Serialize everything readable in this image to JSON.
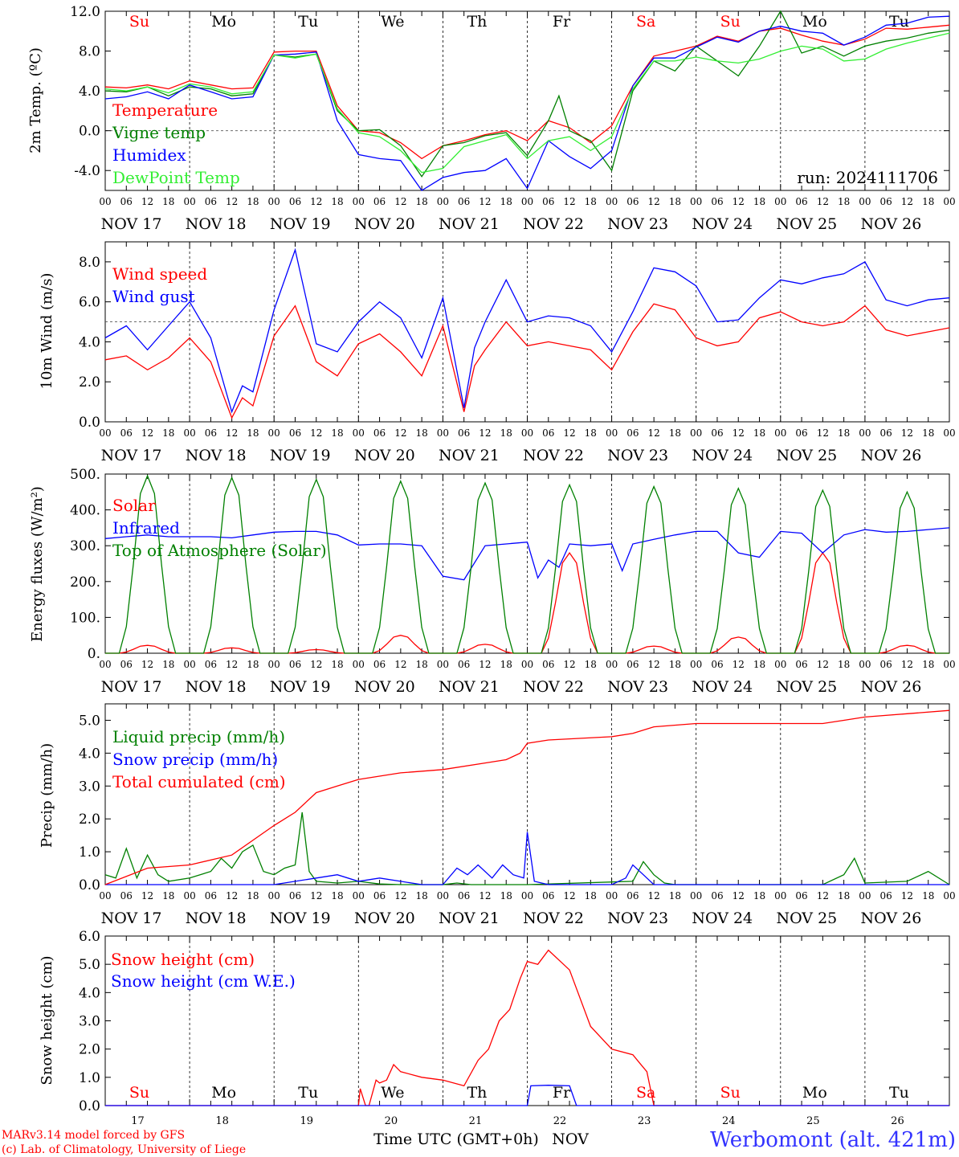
{
  "colors": {
    "red": "#ff0000",
    "green": "#008000",
    "blue": "#0000ff",
    "lightgreen": "#33ee33",
    "weekend": "#ff0000"
  },
  "days": [
    "Su",
    "Mo",
    "Tu",
    "We",
    "Th",
    "Fr",
    "Sa",
    "Su",
    "Mo",
    "Tu"
  ],
  "date_labels": [
    "NOV 17",
    "NOV 18",
    "NOV 19",
    "NOV 20",
    "NOV 21",
    "NOV 22",
    "NOV 23",
    "NOV 24",
    "NOV 25",
    "NOV 26"
  ],
  "hour_labels": [
    "00",
    "06",
    "12",
    "18"
  ],
  "bottom_day_numbers": [
    "17",
    "18",
    "19",
    "20",
    "21",
    "22",
    "23",
    "24",
    "25",
    "26"
  ],
  "footer": {
    "model": "MARv3.14 model forced by GFS",
    "credit": "(c) Lab. of Climatology, University of Liege",
    "xlabel": "Time UTC (GMT+0h)",
    "month": "NOV",
    "station": "Werbomont (alt. 421m)"
  },
  "chart_data": [
    {
      "type": "line",
      "ylabel": "2m Temp. (ºC)",
      "ylim": [
        -6,
        12
      ],
      "yticks": [
        -4,
        0,
        4,
        8,
        12
      ],
      "ytick_labels": [
        "-4.0",
        "0.0",
        "4.0",
        "8.0",
        "12.0"
      ],
      "ref_line": 0,
      "annotation": "run: 2024111706",
      "x_unit": "hours since NOV 17 00 UTC",
      "series": [
        {
          "name": "Temperature",
          "color": "red",
          "x": [
            0,
            6,
            12,
            18,
            24,
            30,
            36,
            42,
            48,
            54,
            60,
            66,
            72,
            78,
            84,
            90,
            96,
            102,
            108,
            114,
            120,
            126,
            132,
            138,
            144,
            150,
            156,
            162,
            168,
            174,
            180,
            186,
            192,
            198,
            204,
            210,
            216,
            222,
            228,
            234,
            240
          ],
          "y": [
            4.4,
            4.3,
            4.6,
            4.2,
            5.0,
            4.6,
            4.2,
            4.3,
            7.9,
            8.0,
            8.0,
            2.5,
            0.0,
            -0.2,
            -1.2,
            -2.8,
            -1.5,
            -1.0,
            -0.4,
            0.0,
            -1.0,
            1.0,
            0.3,
            -1.2,
            0.5,
            4.5,
            7.5,
            8.0,
            8.5,
            9.5,
            9.0,
            10.0,
            10.3,
            9.6,
            9.0,
            8.6,
            9.2,
            10.3,
            10.2,
            10.4,
            10.6
          ]
        },
        {
          "name": "Vigne temp",
          "color": "green",
          "x": [
            0,
            6,
            12,
            18,
            24,
            30,
            36,
            42,
            48,
            54,
            60,
            66,
            72,
            78,
            84,
            90,
            96,
            102,
            108,
            114,
            120,
            126,
            129,
            132,
            138,
            144,
            150,
            156,
            162,
            168,
            174,
            180,
            186,
            192,
            198,
            204,
            210,
            216,
            222,
            228,
            234,
            240
          ],
          "y": [
            4.0,
            3.9,
            4.4,
            3.5,
            4.4,
            4.2,
            3.5,
            3.7,
            7.6,
            7.4,
            7.7,
            2.0,
            0.0,
            0.1,
            -1.5,
            -4.6,
            -1.5,
            -1.2,
            -0.5,
            -0.2,
            -2.5,
            1.0,
            3.5,
            0.0,
            -1.0,
            -4.0,
            4.0,
            7.0,
            6.0,
            8.5,
            7.0,
            5.5,
            8.5,
            12.0,
            7.8,
            8.5,
            7.5,
            8.5,
            9.0,
            9.3,
            9.8,
            10.1
          ]
        },
        {
          "name": "Humidex",
          "color": "blue",
          "x": [
            0,
            6,
            12,
            18,
            24,
            30,
            36,
            42,
            48,
            54,
            60,
            66,
            72,
            78,
            84,
            90,
            96,
            102,
            108,
            114,
            120,
            126,
            132,
            138,
            144,
            150,
            156,
            162,
            168,
            174,
            180,
            186,
            192,
            198,
            204,
            210,
            216,
            222,
            228,
            234,
            240
          ],
          "y": [
            3.2,
            3.4,
            3.9,
            3.2,
            4.6,
            3.9,
            3.2,
            3.4,
            7.6,
            7.7,
            7.9,
            1.0,
            -2.4,
            -2.8,
            -3.0,
            -6.0,
            -4.7,
            -4.2,
            -4.0,
            -2.8,
            -5.8,
            -1.0,
            -2.6,
            -3.8,
            -2.0,
            4.5,
            7.3,
            7.3,
            8.4,
            9.4,
            8.9,
            10.0,
            10.5,
            10.0,
            9.8,
            8.6,
            9.4,
            10.6,
            10.8,
            11.4,
            11.5
          ]
        },
        {
          "name": "DewPoint Temp",
          "color": "lightgreen",
          "x": [
            0,
            6,
            12,
            18,
            24,
            30,
            36,
            42,
            48,
            54,
            60,
            66,
            72,
            78,
            84,
            90,
            96,
            102,
            108,
            114,
            120,
            126,
            132,
            138,
            144,
            150,
            156,
            162,
            168,
            174,
            180,
            186,
            192,
            198,
            204,
            210,
            216,
            222,
            228,
            234,
            240
          ],
          "y": [
            4.2,
            4.0,
            4.4,
            3.8,
            4.7,
            4.4,
            3.7,
            3.9,
            7.6,
            7.3,
            7.7,
            2.2,
            -0.2,
            -0.6,
            -2.0,
            -4.2,
            -3.8,
            -1.6,
            -1.0,
            -0.4,
            -2.8,
            -1.0,
            -0.6,
            -2.0,
            -0.6,
            4.2,
            7.0,
            7.0,
            7.4,
            7.0,
            6.8,
            7.2,
            8.0,
            8.5,
            8.2,
            7.0,
            7.2,
            8.2,
            8.8,
            9.3,
            9.8
          ]
        }
      ]
    },
    {
      "type": "line",
      "ylabel": "10m Wind (m/s)",
      "ylim": [
        0,
        9
      ],
      "yticks": [
        0,
        2,
        4,
        6,
        8
      ],
      "ytick_labels": [
        "0.0",
        "2.0",
        "4.0",
        "6.0",
        "8.0"
      ],
      "ref_line": 5,
      "series": [
        {
          "name": "Wind speed",
          "color": "red",
          "x": [
            0,
            6,
            12,
            18,
            24,
            30,
            36,
            39,
            42,
            48,
            54,
            60,
            66,
            72,
            78,
            84,
            90,
            96,
            102,
            105,
            108,
            114,
            120,
            126,
            132,
            138,
            144,
            150,
            156,
            162,
            168,
            174,
            180,
            186,
            192,
            198,
            204,
            210,
            216,
            222,
            228,
            234,
            240
          ],
          "y": [
            3.1,
            3.3,
            2.6,
            3.2,
            4.2,
            3.0,
            0.2,
            1.2,
            0.8,
            4.3,
            5.8,
            3.0,
            2.3,
            3.9,
            4.4,
            3.5,
            2.3,
            4.8,
            0.5,
            2.8,
            3.6,
            5.0,
            3.8,
            4.0,
            3.8,
            3.6,
            2.6,
            4.5,
            5.9,
            5.6,
            4.2,
            3.8,
            4.0,
            5.2,
            5.5,
            5.0,
            4.8,
            5.0,
            5.8,
            4.6,
            4.3,
            4.5,
            4.7
          ]
        },
        {
          "name": "Wind gust",
          "color": "blue",
          "x": [
            0,
            6,
            12,
            18,
            24,
            30,
            36,
            39,
            42,
            48,
            54,
            60,
            66,
            72,
            78,
            84,
            90,
            96,
            102,
            105,
            108,
            114,
            120,
            126,
            132,
            138,
            144,
            150,
            156,
            162,
            168,
            174,
            180,
            186,
            192,
            198,
            204,
            210,
            216,
            222,
            228,
            234,
            240
          ],
          "y": [
            4.2,
            4.8,
            3.6,
            4.8,
            6.0,
            4.2,
            0.5,
            1.8,
            1.5,
            5.6,
            8.6,
            3.9,
            3.5,
            5.0,
            6.0,
            5.2,
            3.2,
            6.2,
            0.7,
            3.7,
            5.0,
            7.1,
            5.0,
            5.3,
            5.2,
            4.8,
            3.5,
            5.5,
            7.7,
            7.5,
            6.8,
            5.0,
            5.1,
            6.2,
            7.1,
            6.9,
            7.2,
            7.4,
            8.0,
            6.1,
            5.8,
            6.1,
            6.2
          ]
        }
      ]
    },
    {
      "type": "line",
      "ylabel": "Energy fluxes (W/m²)",
      "ylim": [
        0,
        500
      ],
      "yticks": [
        0,
        100,
        200,
        300,
        400,
        500
      ],
      "ytick_labels": [
        "0.",
        "100.",
        "200.",
        "300.",
        "400.",
        "500."
      ],
      "series": [
        {
          "name": "Solar",
          "color": "red",
          "peaks": [
            22,
            15,
            10,
            50,
            25,
            280,
            20,
            45,
            280,
            22
          ]
        },
        {
          "name": "Infrared",
          "color": "blue",
          "x": [
            0,
            6,
            12,
            18,
            24,
            30,
            36,
            42,
            48,
            54,
            60,
            66,
            72,
            78,
            84,
            90,
            96,
            102,
            108,
            114,
            120,
            123,
            126,
            129,
            132,
            138,
            144,
            147,
            150,
            156,
            162,
            168,
            174,
            180,
            186,
            192,
            198,
            204,
            210,
            216,
            222,
            228,
            234,
            240
          ],
          "y": [
            320,
            325,
            330,
            325,
            325,
            325,
            322,
            330,
            338,
            340,
            340,
            330,
            302,
            305,
            305,
            300,
            215,
            205,
            300,
            305,
            310,
            210,
            260,
            240,
            305,
            300,
            305,
            230,
            305,
            318,
            330,
            340,
            340,
            280,
            268,
            340,
            335,
            280,
            330,
            345,
            338,
            340,
            345,
            350
          ]
        },
        {
          "name": "Top of Atmosphere (Solar)",
          "color": "green",
          "peaks": [
            495,
            490,
            485,
            480,
            475,
            470,
            465,
            460,
            455,
            450
          ]
        }
      ]
    },
    {
      "type": "line",
      "ylabel": "Precip (mm/h)",
      "ylim": [
        0,
        5.5
      ],
      "yticks": [
        0,
        1,
        2,
        3,
        4,
        5
      ],
      "ytick_labels": [
        "0.0",
        "1.0",
        "2.0",
        "3.0",
        "4.0",
        "5.0"
      ],
      "series": [
        {
          "name": "Liquid precip (mm/h)",
          "color": "green",
          "x": [
            0,
            3,
            6,
            9,
            12,
            15,
            18,
            24,
            30,
            33,
            36,
            39,
            42,
            45,
            48,
            51,
            54,
            56,
            58,
            60,
            66,
            72,
            78,
            84,
            90,
            96,
            100,
            104,
            108,
            114,
            120,
            150,
            153,
            156,
            159,
            162,
            180,
            204,
            210,
            213,
            216,
            228,
            234,
            240
          ],
          "y": [
            0.3,
            0.2,
            1.1,
            0.2,
            0.9,
            0.3,
            0.1,
            0.2,
            0.4,
            0.8,
            0.5,
            1.0,
            1.2,
            0.4,
            0.3,
            0.5,
            0.6,
            2.2,
            0.4,
            0.1,
            0.05,
            0.1,
            0.02,
            0.0,
            0.0,
            0.0,
            0.05,
            0.0,
            0.0,
            0.0,
            0.0,
            0.1,
            0.7,
            0.3,
            0.05,
            0.0,
            0.0,
            0.0,
            0.3,
            0.8,
            0.05,
            0.1,
            0.4,
            0.0
          ]
        },
        {
          "name": "Snow precip (mm/h)",
          "color": "blue",
          "x": [
            0,
            48,
            54,
            60,
            66,
            72,
            78,
            84,
            90,
            96,
            100,
            103,
            106,
            110,
            113,
            116,
            119,
            120,
            122,
            126,
            144,
            148,
            150,
            153,
            156,
            240
          ],
          "y": [
            0.0,
            0.0,
            0.1,
            0.2,
            0.3,
            0.1,
            0.2,
            0.1,
            0.0,
            0.0,
            0.5,
            0.3,
            0.6,
            0.2,
            0.6,
            0.3,
            0.2,
            1.6,
            0.1,
            0.0,
            0.0,
            0.2,
            0.6,
            0.3,
            0.0,
            0.0
          ]
        },
        {
          "name": "Total cumulated (cm)",
          "color": "red",
          "x": [
            0,
            12,
            24,
            36,
            48,
            54,
            60,
            66,
            72,
            84,
            96,
            108,
            114,
            118,
            120,
            126,
            144,
            150,
            156,
            168,
            192,
            204,
            210,
            216,
            228,
            240
          ],
          "y": [
            0.0,
            0.5,
            0.6,
            0.9,
            1.8,
            2.2,
            2.8,
            3.0,
            3.2,
            3.4,
            3.5,
            3.7,
            3.8,
            4.0,
            4.3,
            4.4,
            4.5,
            4.6,
            4.8,
            4.9,
            4.9,
            4.9,
            5.0,
            5.1,
            5.2,
            5.3
          ]
        }
      ]
    },
    {
      "type": "line",
      "ylabel": "Snow height (cm)",
      "ylim": [
        0,
        6
      ],
      "yticks": [
        0,
        1,
        2,
        3,
        4,
        5,
        6
      ],
      "ytick_labels": [
        "0.0",
        "1.0",
        "2.0",
        "3.0",
        "4.0",
        "5.0",
        "6.0"
      ],
      "series": [
        {
          "name": "Snow height (cm)",
          "color": "red",
          "x": [
            0,
            72,
            72.5,
            74,
            75,
            77,
            78,
            80,
            82,
            84,
            90,
            96,
            102,
            106,
            109,
            112,
            115,
            118,
            120,
            123,
            126,
            132,
            138,
            144,
            150,
            152,
            154,
            156,
            240
          ],
          "y": [
            0.0,
            0.0,
            0.6,
            0.0,
            0.0,
            0.9,
            0.8,
            0.9,
            1.45,
            1.2,
            1.0,
            0.9,
            0.7,
            1.6,
            2.0,
            3.0,
            3.4,
            4.5,
            5.1,
            5.0,
            5.5,
            4.8,
            2.8,
            2.0,
            1.8,
            1.5,
            1.2,
            0.0,
            0.0
          ]
        },
        {
          "name": "Snow height (cm W.E.)",
          "color": "blue",
          "x": [
            0,
            120,
            121,
            126,
            132,
            134,
            240
          ],
          "y": [
            0.0,
            0.0,
            0.7,
            0.72,
            0.7,
            0.0,
            0.0
          ]
        }
      ]
    }
  ],
  "legends": {
    "temp": [
      "Temperature",
      "Vigne temp",
      "Humidex",
      "DewPoint Temp"
    ],
    "wind": [
      "Wind speed",
      "Wind gust"
    ],
    "energy": [
      "Solar",
      "Infrared",
      "Top of Atmosphere (Solar)"
    ],
    "precip": [
      "Liquid precip (mm/h)",
      "Snow precip (mm/h)",
      "Total cumulated (cm)"
    ],
    "snow": [
      "Snow height (cm)",
      "Snow height (cm W.E.)"
    ]
  }
}
